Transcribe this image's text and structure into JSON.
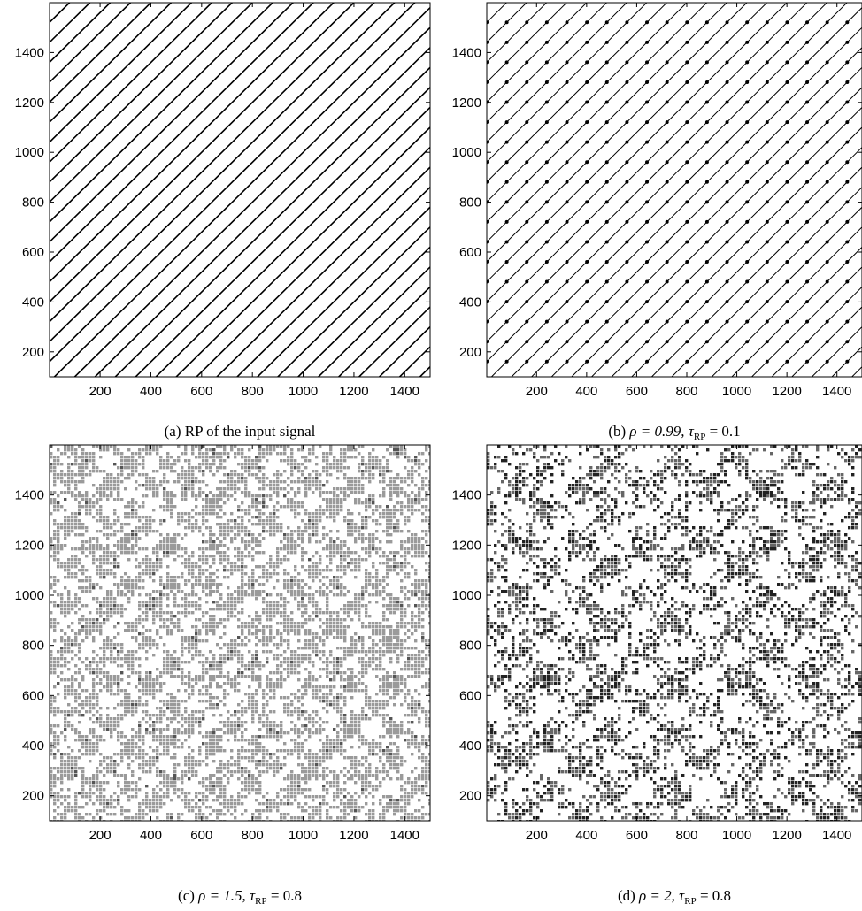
{
  "figure": {
    "panels": [
      {
        "id": "a",
        "caption": {
          "prefix": "(a) RP of the input signal",
          "math": ""
        },
        "pattern": "diagonal-lines"
      },
      {
        "id": "b",
        "caption": {
          "prefix": "(b) ",
          "rho": "ρ = 0.99, ",
          "tau": "τ",
          "tau_sub": "RP",
          "tau_val": " = 0.1"
        },
        "pattern": "diagonal-dotted-lines"
      },
      {
        "id": "c",
        "caption": {
          "prefix": "(c) ",
          "rho": "ρ = 1.5, ",
          "tau": "τ",
          "tau_sub": "RP",
          "tau_val": " = 0.8"
        },
        "pattern": "gray-checker-texture"
      },
      {
        "id": "d",
        "caption": {
          "prefix": "(d) ",
          "rho": "ρ = 2, ",
          "tau": "τ",
          "tau_sub": "RP",
          "tau_val": " = 0.8"
        },
        "pattern": "dark-block-texture"
      }
    ]
  },
  "chart_data": [
    {
      "type": "heatmap",
      "title": "",
      "caption": "(a) RP of the input signal",
      "xlim": [
        1,
        1500
      ],
      "ylim": [
        100,
        1600
      ],
      "x_ticks": [
        200,
        400,
        600,
        800,
        1000,
        1200,
        1400
      ],
      "y_ticks": [
        200,
        400,
        600,
        800,
        1000,
        1200,
        1400
      ],
      "line_period": 80,
      "grid": false
    },
    {
      "type": "heatmap",
      "title": "",
      "caption": "(b) ρ = 0.99, τRP = 0.1",
      "xlim": [
        1,
        1500
      ],
      "ylim": [
        100,
        1600
      ],
      "x_ticks": [
        200,
        400,
        600,
        800,
        1000,
        1200,
        1400
      ],
      "y_ticks": [
        200,
        400,
        600,
        800,
        1000,
        1200,
        1400
      ],
      "line_period": 80,
      "grid": false
    },
    {
      "type": "heatmap",
      "title": "",
      "caption": "(c) ρ = 1.5, τRP = 0.8",
      "xlim": [
        1,
        1500
      ],
      "ylim": [
        100,
        1600
      ],
      "x_ticks": [
        200,
        400,
        600,
        800,
        1000,
        1200,
        1400
      ],
      "y_ticks": [
        200,
        400,
        600,
        800,
        1000,
        1200,
        1400
      ],
      "grid": false
    },
    {
      "type": "heatmap",
      "title": "",
      "caption": "(d) ρ = 2, τRP = 0.8",
      "xlim": [
        1,
        1500
      ],
      "ylim": [
        100,
        1600
      ],
      "x_ticks": [
        200,
        400,
        600,
        800,
        1000,
        1200,
        1400
      ],
      "y_ticks": [
        200,
        400,
        600,
        800,
        1000,
        1200,
        1400
      ],
      "grid": false
    }
  ]
}
